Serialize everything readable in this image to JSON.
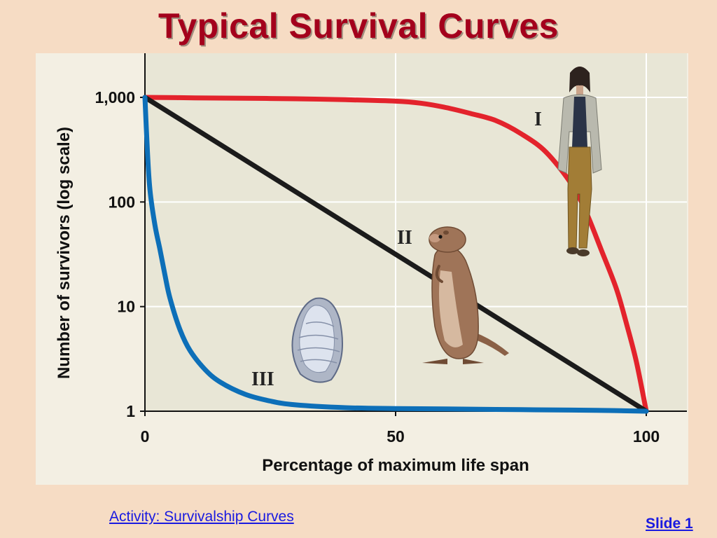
{
  "slide": {
    "title": "Typical Survival Curves",
    "activity_link": "Activity: Survivalship Curves",
    "slide_number": "Slide 1"
  },
  "colors": {
    "background": "#f6dcc4",
    "title": "#a4001c",
    "plot_area": "#e8e6d6",
    "curve_I": "#e3232c",
    "curve_II": "#1b1b1b",
    "curve_III": "#0d6fb8",
    "link": "#1a1ae0"
  },
  "icons": {
    "curve_I": "human-figure-icon",
    "curve_II": "ground-squirrel-icon",
    "curve_III": "oyster-shell-icon"
  },
  "chart_data": {
    "type": "line",
    "title": "",
    "xlabel": "Percentage of maximum life span",
    "ylabel": "Number of survivors (log scale)",
    "xlim": [
      0,
      100
    ],
    "ylim": [
      1,
      1000
    ],
    "yscale": "log",
    "x_ticks": [
      0,
      50,
      100
    ],
    "x_tick_labels": [
      "0",
      "50",
      "100"
    ],
    "y_ticks": [
      1,
      10,
      100,
      1000
    ],
    "y_tick_labels": [
      "1",
      "10",
      "100",
      "1,000"
    ],
    "grid": true,
    "legend": "none",
    "series": [
      {
        "name": "I",
        "color": "#e3232c",
        "x": [
          0,
          10,
          20,
          30,
          40,
          50,
          55,
          60,
          65,
          70,
          75,
          80,
          85,
          88,
          91,
          94,
          96,
          98,
          100
        ],
        "y": [
          1000,
          990,
          980,
          970,
          950,
          920,
          880,
          800,
          700,
          600,
          450,
          300,
          150,
          80,
          35,
          15,
          7,
          3,
          1
        ]
      },
      {
        "name": "II",
        "color": "#1b1b1b",
        "x": [
          0,
          100
        ],
        "y": [
          1000,
          1
        ]
      },
      {
        "name": "III",
        "color": "#0d6fb8",
        "x": [
          0,
          0.5,
          1,
          2,
          3,
          4,
          5,
          7,
          9,
          12,
          15,
          20,
          25,
          30,
          40,
          50,
          60,
          70,
          80,
          90,
          100
        ],
        "y": [
          1000,
          300,
          130,
          60,
          35,
          20,
          12,
          6,
          3.8,
          2.5,
          1.9,
          1.45,
          1.25,
          1.15,
          1.08,
          1.06,
          1.05,
          1.04,
          1.03,
          1.02,
          1.0
        ]
      }
    ]
  }
}
